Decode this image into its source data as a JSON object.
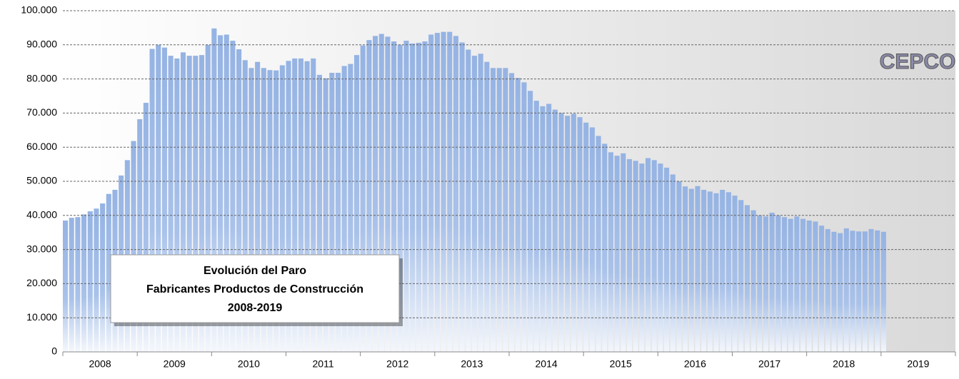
{
  "chart_data": {
    "type": "bar",
    "title_lines": [
      "Evolución del Paro",
      "Fabricantes Productos de Construcción",
      "2008-2019"
    ],
    "logo": "CEPCO",
    "year_labels": [
      "2008",
      "2009",
      "2010",
      "2011",
      "2012",
      "2013",
      "2014",
      "2015",
      "2016",
      "2017",
      "2018",
      "2019"
    ],
    "months_per_year": 12,
    "color": "#95b3e3",
    "values": [
      38500,
      39300,
      39500,
      40300,
      41200,
      42000,
      43500,
      46300,
      47500,
      51700,
      56200,
      61800,
      68200,
      73000,
      88800,
      90000,
      89200,
      86800,
      86000,
      87800,
      86800,
      86800,
      87000,
      90000,
      94800,
      92800,
      93000,
      91200,
      88700,
      85500,
      83200,
      85000,
      83200,
      82600,
      82500,
      84000,
      85300,
      86000,
      86000,
      85200,
      86000,
      81200,
      80200,
      81800,
      81800,
      83800,
      84400,
      87000,
      89800,
      91400,
      92600,
      93200,
      92400,
      91000,
      90000,
      91200,
      90400,
      90600,
      91000,
      93000,
      93500,
      93800,
      93800,
      92600,
      90700,
      88600,
      86800,
      87400,
      85000,
      83200,
      83200,
      83200,
      81700,
      80300,
      79000,
      76500,
      73600,
      72000,
      72700,
      71000,
      70000,
      69200,
      69800,
      68800,
      67200,
      65800,
      63300,
      61000,
      58500,
      57500,
      58200,
      56500,
      56000,
      55200,
      56800,
      56200,
      55200,
      54000,
      52000,
      50000,
      48500,
      47800,
      48600,
      47500,
      47000,
      46500,
      47500,
      46800,
      45800,
      44500,
      43000,
      41500,
      40000,
      39700,
      40800,
      40000,
      39500,
      39000,
      39700,
      39000,
      38500,
      38200,
      37000,
      36000,
      35200,
      34800,
      36200,
      35500,
      35300,
      35300,
      36000,
      35600,
      35200
    ],
    "ylim": [
      0,
      100000
    ],
    "yticks": [
      0,
      {
        "value": 10000,
        "label": "10.000"
      },
      {
        "value": 20000,
        "label": "20.000"
      },
      {
        "value": 30000,
        "label": "30.000"
      },
      {
        "value": 40000,
        "label": "40.000"
      },
      {
        "value": 50000,
        "label": "50.000"
      },
      {
        "value": 60000,
        "label": "60.000"
      },
      {
        "value": 70000,
        "label": "70.000"
      },
      {
        "value": 80000,
        "label": "80.000"
      },
      {
        "value": 90000,
        "label": "90.000"
      },
      {
        "value": 100000,
        "label": "100.000"
      }
    ],
    "grid": true
  }
}
